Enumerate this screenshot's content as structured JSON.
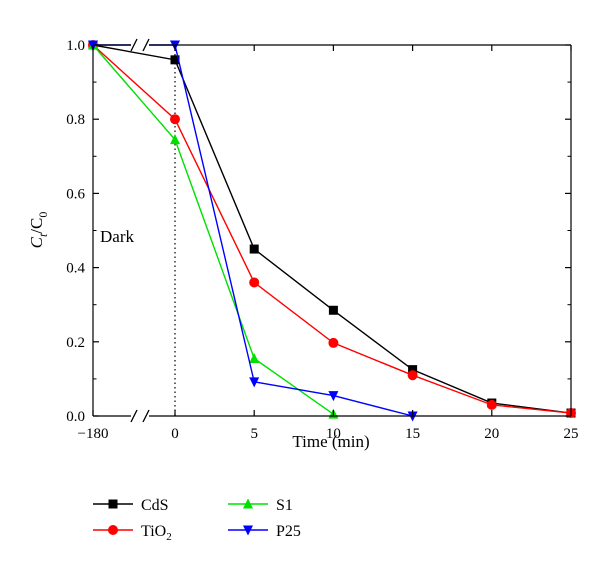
{
  "chart_data": {
    "type": "line",
    "xlabel": "Time (min)",
    "ylabel": {
      "main": "C",
      "sub1": "t",
      "mid": "/C",
      "sub2": "0"
    },
    "x_ticks": [
      {
        "value": -180,
        "label": "−180"
      },
      {
        "value": 0,
        "label": "0"
      },
      {
        "value": 5,
        "label": "5"
      },
      {
        "value": 10,
        "label": "10"
      },
      {
        "value": 15,
        "label": "15"
      },
      {
        "value": 20,
        "label": "20"
      },
      {
        "value": 25,
        "label": "25"
      }
    ],
    "y_ticks": [
      {
        "value": 0.0,
        "label": "0.0"
      },
      {
        "value": 0.2,
        "label": "0.2"
      },
      {
        "value": 0.4,
        "label": "0.4"
      },
      {
        "value": 0.6,
        "label": "0.6"
      },
      {
        "value": 0.8,
        "label": "0.8"
      },
      {
        "value": 1.0,
        "label": "1.0"
      }
    ],
    "ylim": [
      0,
      1.0
    ],
    "x_axis_break": "between -180 and 0",
    "annotation": "Dark",
    "dark_divider_at_x": 0,
    "grid": false,
    "legend_placement": "bottom",
    "series": [
      {
        "name": "CdS",
        "sub": "",
        "color": "#000000",
        "marker": "square",
        "x": [
          -180,
          0,
          5,
          10,
          15,
          20,
          25
        ],
        "y": [
          1.0,
          0.96,
          0.45,
          0.285,
          0.125,
          0.035,
          0.008
        ]
      },
      {
        "name": "TiO",
        "sub": "2",
        "color": "#ff0000",
        "marker": "circle",
        "x": [
          -180,
          0,
          5,
          10,
          15,
          20,
          25
        ],
        "y": [
          1.0,
          0.8,
          0.36,
          0.197,
          0.11,
          0.03,
          0.008
        ]
      },
      {
        "name": "S1",
        "sub": "",
        "color": "#00e000",
        "marker": "triangle-up",
        "x": [
          -180,
          0,
          5,
          10
        ],
        "y": [
          1.0,
          0.745,
          0.155,
          0.005
        ]
      },
      {
        "name": "P25",
        "sub": "",
        "color": "#0000ff",
        "marker": "triangle-down",
        "x": [
          -180,
          0,
          5,
          10,
          15
        ],
        "y": [
          1.0,
          1.0,
          0.092,
          0.055,
          0.0
        ]
      }
    ]
  }
}
